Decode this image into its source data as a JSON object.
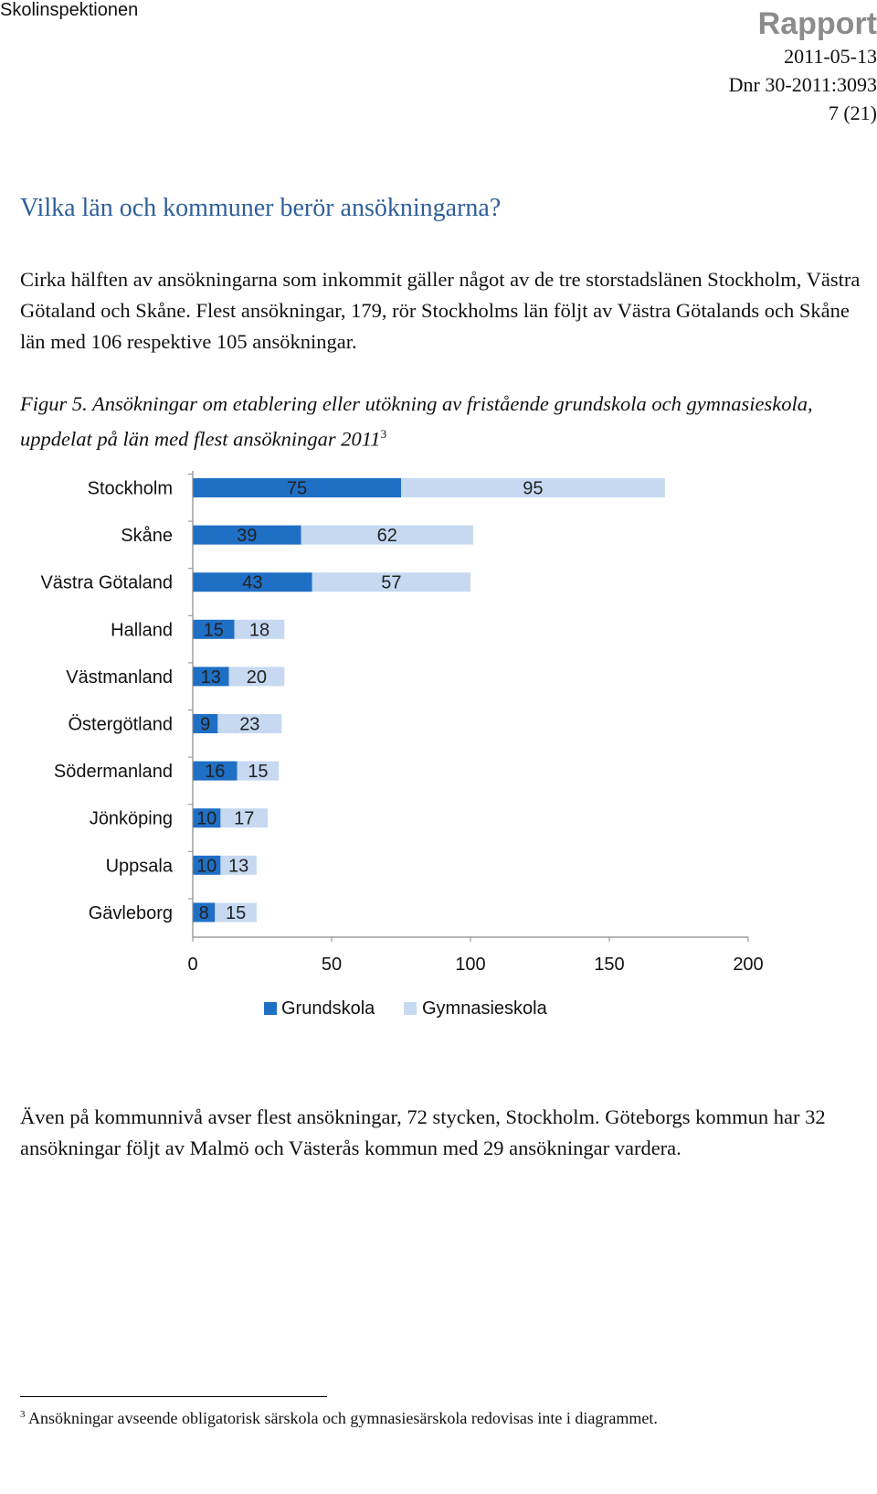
{
  "header": {
    "org": "Skolinspektionen",
    "report": "Rapport",
    "date": "2011-05-13",
    "dnr": "Dnr 30-2011:3093",
    "page": "7 (21)"
  },
  "heading": "Vilka län och kommuner berör ansökningarna?",
  "paragraph1": "Cirka hälften av ansökningarna som inkommit gäller något av de tre storstadslänen Stockholm, Västra Götaland och Skåne. Flest ansökningar, 179, rör Stockholms län följt av Västra Götalands och Skåne län med 106 respektive 105 ansökningar.",
  "caption": {
    "text": "Figur 5. Ansökningar om etablering eller utökning av fristående grundskola och gymnasieskola, uppdelat på län med flest ansökningar 2011",
    "note": "3"
  },
  "chart_data": {
    "type": "bar",
    "orientation": "horizontal",
    "stacked": true,
    "categories": [
      "Stockholm",
      "Skåne",
      "Västra Götaland",
      "Halland",
      "Västmanland",
      "Östergötland",
      "Södermanland",
      "Jönköping",
      "Uppsala",
      "Gävleborg"
    ],
    "series": [
      {
        "name": "Grundskola",
        "color": "#1f6fc5",
        "values": [
          75,
          39,
          43,
          15,
          13,
          9,
          16,
          10,
          10,
          8
        ]
      },
      {
        "name": "Gymnasieskola",
        "color": "#c6d9f1",
        "values": [
          95,
          62,
          57,
          18,
          20,
          23,
          15,
          17,
          13,
          15
        ]
      }
    ],
    "xlim": [
      0,
      200
    ],
    "xticks": [
      0,
      50,
      100,
      150,
      200
    ],
    "legend": "bottom",
    "grid": false
  },
  "paragraph2": "Även på kommunnivå avser flest ansökningar, 72 stycken, Stockholm.  Göteborgs kommun har 32 ansökningar följt av Malmö och Västerås kommun med 29 ansökningar vardera.",
  "footnote": {
    "mark": "3",
    "text": "Ansökningar avseende obligatorisk särskola och gymnasiesärskola redovisas inte i diagrammet."
  }
}
